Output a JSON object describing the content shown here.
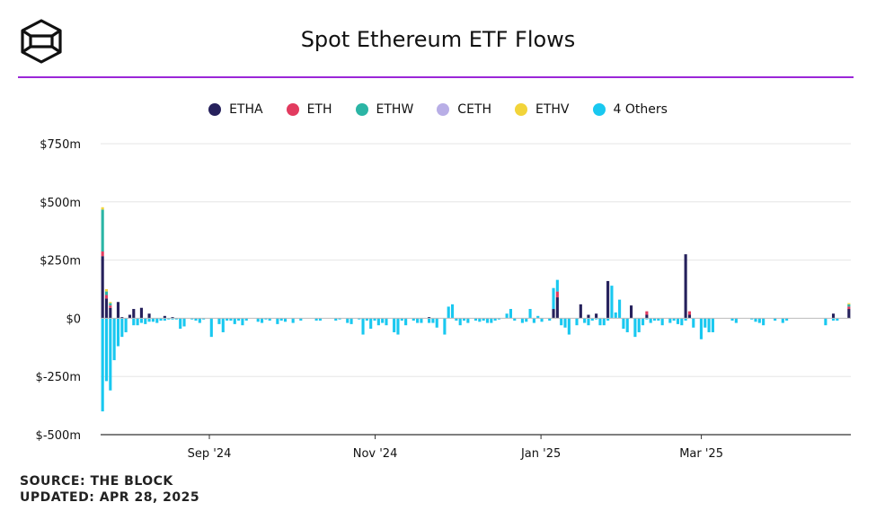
{
  "title": "Spot Ethereum ETF Flows",
  "logo": "the-block-cube-logo",
  "footer": {
    "source": "SOURCE: THE BLOCK",
    "updated": "UPDATED: APR 28, 2025"
  },
  "colors": {
    "accent_rule": "#9b27d8",
    "grid": "#e6e6e6",
    "axis": "#333333"
  },
  "chart_data": {
    "type": "bar",
    "stacked": true,
    "title": "Spot Ethereum ETF Flows",
    "xlabel": "",
    "ylabel": "",
    "ylim": [
      -500,
      750
    ],
    "y_ticks": [
      -500,
      -250,
      0,
      250,
      500,
      750
    ],
    "y_tick_labels": [
      "$-500m",
      "$-250m",
      "$0",
      "$250m",
      "$500m",
      "$750m"
    ],
    "x_range": [
      "2024-07-23",
      "2025-04-25"
    ],
    "x_ticks": [
      {
        "date": "2024-09-01",
        "label": "Sep '24"
      },
      {
        "date": "2024-11-01",
        "label": "Nov '24"
      },
      {
        "date": "2025-01-01",
        "label": "Jan '25"
      },
      {
        "date": "2025-03-01",
        "label": "Mar '25"
      }
    ],
    "grid": true,
    "legend_position": "top-center",
    "units": "USD millions",
    "series": [
      {
        "name": "ETHA",
        "color": "#26215c",
        "values": [
          267,
          85,
          45,
          0,
          70,
          5,
          0,
          15,
          40,
          0,
          45,
          0,
          20,
          0,
          0,
          0,
          10,
          0,
          5,
          0,
          0,
          0,
          0,
          0,
          0,
          0,
          0,
          0,
          0,
          0,
          0,
          0,
          0,
          0,
          0,
          0,
          0,
          0,
          0,
          0,
          0,
          0,
          0,
          0,
          0,
          0,
          0,
          0,
          0,
          0,
          0,
          0,
          0,
          0,
          0,
          0,
          0,
          0,
          0,
          0,
          0,
          0,
          0,
          0,
          0,
          0,
          0,
          0,
          0,
          0,
          0,
          0,
          0,
          0,
          0,
          0,
          0,
          0,
          0,
          0,
          0,
          0,
          0,
          0,
          5,
          0,
          0,
          0,
          0,
          0,
          0,
          0,
          0,
          0,
          0,
          0,
          0,
          0,
          0,
          0,
          0,
          0,
          0,
          0,
          0,
          0,
          0,
          0,
          0,
          0,
          0,
          0,
          0,
          0,
          0,
          0,
          40,
          90,
          0,
          0,
          0,
          0,
          0,
          60,
          0,
          15,
          0,
          20,
          0,
          0,
          160,
          0,
          0,
          0,
          0,
          0,
          55,
          0,
          0,
          0,
          15,
          0,
          0,
          0,
          0,
          0,
          0,
          0,
          0,
          0,
          275,
          15,
          0,
          0,
          0,
          0,
          0,
          0,
          0,
          0,
          0,
          0,
          0,
          0,
          0,
          0,
          0,
          0,
          0,
          0,
          0,
          0,
          0,
          0,
          0,
          0,
          0,
          0,
          0,
          0,
          0,
          0,
          0,
          0,
          0,
          0,
          0,
          0,
          20,
          0,
          0,
          0,
          40
        ]
      },
      {
        "name": "ETH",
        "color": "#e23b5f",
        "values": [
          20,
          15,
          10,
          0,
          0,
          0,
          0,
          0,
          0,
          0,
          0,
          0,
          0,
          0,
          0,
          0,
          0,
          0,
          0,
          0,
          0,
          0,
          0,
          0,
          0,
          0,
          0,
          0,
          0,
          0,
          0,
          0,
          0,
          0,
          0,
          0,
          0,
          0,
          0,
          0,
          0,
          0,
          0,
          0,
          0,
          0,
          0,
          0,
          0,
          0,
          0,
          0,
          0,
          0,
          0,
          0,
          0,
          0,
          0,
          0,
          0,
          0,
          0,
          0,
          0,
          0,
          0,
          0,
          0,
          0,
          0,
          0,
          0,
          0,
          0,
          0,
          0,
          0,
          0,
          0,
          0,
          0,
          0,
          0,
          0,
          0,
          0,
          0,
          0,
          0,
          0,
          0,
          0,
          0,
          0,
          0,
          0,
          0,
          0,
          0,
          0,
          0,
          0,
          0,
          0,
          0,
          0,
          0,
          0,
          0,
          0,
          0,
          0,
          0,
          0,
          0,
          0,
          25,
          0,
          0,
          0,
          0,
          0,
          0,
          0,
          0,
          0,
          0,
          0,
          0,
          0,
          0,
          0,
          0,
          0,
          0,
          0,
          0,
          0,
          0,
          15,
          0,
          0,
          0,
          0,
          0,
          0,
          0,
          0,
          0,
          0,
          15,
          0,
          0,
          0,
          0,
          0,
          0,
          0,
          0,
          0,
          0,
          0,
          0,
          0,
          0,
          0,
          0,
          0,
          0,
          0,
          0,
          0,
          0,
          0,
          0,
          0,
          0,
          0,
          0,
          0,
          0,
          0,
          0,
          0,
          0,
          0,
          0,
          0,
          0,
          0,
          0,
          10
        ]
      },
      {
        "name": "ETHW",
        "color": "#2bb5a5",
        "values": [
          180,
          15,
          10,
          0,
          0,
          0,
          0,
          0,
          0,
          0,
          0,
          0,
          0,
          0,
          0,
          0,
          0,
          0,
          0,
          0,
          0,
          0,
          0,
          0,
          0,
          0,
          0,
          0,
          0,
          0,
          0,
          0,
          0,
          0,
          0,
          0,
          0,
          0,
          0,
          0,
          0,
          0,
          0,
          0,
          0,
          0,
          0,
          0,
          0,
          0,
          0,
          0,
          0,
          0,
          0,
          0,
          0,
          0,
          0,
          0,
          0,
          0,
          0,
          0,
          0,
          0,
          0,
          0,
          0,
          0,
          0,
          0,
          0,
          0,
          0,
          0,
          0,
          0,
          0,
          0,
          0,
          0,
          0,
          0,
          0,
          0,
          0,
          0,
          0,
          0,
          0,
          0,
          0,
          0,
          0,
          0,
          0,
          0,
          0,
          0,
          0,
          0,
          0,
          0,
          0,
          0,
          0,
          0,
          0,
          0,
          0,
          0,
          0,
          0,
          0,
          0,
          0,
          0,
          0,
          0,
          0,
          0,
          0,
          0,
          0,
          0,
          0,
          0,
          0,
          0,
          0,
          0,
          0,
          0,
          0,
          0,
          0,
          0,
          0,
          0,
          0,
          0,
          0,
          0,
          0,
          0,
          0,
          0,
          0,
          0,
          0,
          0,
          0,
          0,
          0,
          0,
          0,
          0,
          0,
          0,
          0,
          0,
          0,
          0,
          0,
          0,
          0,
          0,
          0,
          0,
          0,
          0,
          0,
          0,
          0,
          0,
          0,
          0,
          0,
          0,
          0,
          0,
          0,
          0,
          0,
          0,
          0,
          0,
          0,
          0,
          0,
          0,
          10
        ]
      },
      {
        "name": "CETH",
        "color": "#b8aee6",
        "values": [
          0,
          0,
          0,
          0,
          0,
          0,
          0,
          0,
          0,
          0,
          0,
          0,
          0,
          0,
          0,
          0,
          0,
          0,
          0,
          0,
          0,
          0,
          0,
          0,
          0,
          0,
          0,
          0,
          0,
          0,
          0,
          0,
          0,
          0,
          0,
          0,
          0,
          0,
          0,
          0,
          0,
          0,
          0,
          0,
          0,
          0,
          0,
          0,
          0,
          0,
          0,
          0,
          0,
          0,
          0,
          0,
          0,
          0,
          0,
          0,
          0,
          0,
          0,
          0,
          0,
          0,
          0,
          0,
          0,
          0,
          0,
          0,
          0,
          0,
          0,
          0,
          0,
          0,
          0,
          0,
          0,
          0,
          0,
          0,
          0,
          0,
          0,
          0,
          0,
          0,
          0,
          0,
          0,
          0,
          0,
          0,
          0,
          0,
          0,
          0,
          0,
          0,
          0,
          0,
          0,
          0,
          0,
          0,
          0,
          0,
          0,
          0,
          0,
          0,
          0,
          0,
          0,
          0,
          0,
          0,
          0,
          0,
          0,
          0,
          0,
          0,
          0,
          0,
          0,
          0,
          0,
          0,
          0,
          0,
          0,
          0,
          0,
          0,
          0,
          0,
          0,
          0,
          0,
          0,
          0,
          0,
          0,
          0,
          0,
          0,
          0,
          0,
          0,
          0,
          0,
          0,
          0,
          0,
          0,
          0,
          0,
          0,
          0,
          0,
          0,
          0,
          0,
          0,
          0,
          0,
          0,
          0,
          0,
          0,
          0,
          0,
          0,
          0,
          0,
          0,
          0,
          0,
          0,
          0,
          0,
          0,
          0,
          0,
          0,
          0,
          0,
          0,
          0
        ]
      },
      {
        "name": "ETHV",
        "color": "#f2d43a",
        "values": [
          10,
          10,
          5,
          0,
          0,
          0,
          0,
          0,
          0,
          0,
          0,
          0,
          0,
          0,
          0,
          0,
          0,
          0,
          0,
          0,
          0,
          0,
          0,
          0,
          0,
          0,
          0,
          0,
          0,
          0,
          0,
          0,
          0,
          0,
          0,
          0,
          0,
          0,
          0,
          0,
          0,
          0,
          0,
          0,
          0,
          0,
          0,
          0,
          0,
          0,
          0,
          0,
          0,
          0,
          0,
          0,
          0,
          0,
          0,
          0,
          0,
          0,
          0,
          0,
          0,
          0,
          0,
          0,
          0,
          0,
          0,
          0,
          0,
          0,
          0,
          0,
          0,
          0,
          0,
          0,
          0,
          0,
          0,
          0,
          0,
          0,
          0,
          0,
          0,
          0,
          0,
          0,
          0,
          0,
          0,
          0,
          0,
          0,
          0,
          0,
          0,
          0,
          0,
          0,
          0,
          0,
          0,
          0,
          0,
          0,
          0,
          0,
          0,
          0,
          0,
          0,
          0,
          0,
          0,
          0,
          0,
          0,
          0,
          0,
          0,
          0,
          0,
          0,
          0,
          0,
          0,
          0,
          0,
          0,
          0,
          0,
          0,
          0,
          0,
          0,
          0,
          0,
          0,
          0,
          0,
          0,
          0,
          0,
          0,
          0,
          0,
          0,
          0,
          0,
          0,
          0,
          0,
          0,
          0,
          0,
          0,
          0,
          0,
          0,
          0,
          0,
          0,
          0,
          0,
          0,
          0,
          0,
          0,
          0,
          0,
          0,
          0,
          0,
          0,
          0,
          0,
          0,
          0,
          0,
          0,
          0,
          0,
          0,
          0,
          0,
          0,
          0,
          5
        ]
      },
      {
        "name": "4 Others",
        "color": "#19c8f0",
        "values": [
          -400,
          -270,
          -310,
          -180,
          -120,
          -80,
          -60,
          0,
          -30,
          -30,
          -20,
          -25,
          -15,
          -15,
          -20,
          -10,
          -10,
          -5,
          -5,
          -5,
          -45,
          -35,
          0,
          -5,
          -10,
          -20,
          -5,
          0,
          -80,
          0,
          -25,
          -60,
          -10,
          -10,
          -25,
          -10,
          -30,
          -10,
          0,
          0,
          -15,
          -20,
          -5,
          -10,
          0,
          -25,
          -10,
          -15,
          0,
          -20,
          0,
          -10,
          0,
          0,
          0,
          -10,
          -10,
          0,
          0,
          0,
          -10,
          -5,
          0,
          -20,
          -25,
          0,
          -5,
          -70,
          -10,
          -45,
          -10,
          -30,
          -20,
          -30,
          0,
          -60,
          -70,
          -10,
          -30,
          0,
          -10,
          -20,
          -20,
          0,
          -20,
          -20,
          -40,
          0,
          -70,
          50,
          60,
          -10,
          -30,
          -10,
          -20,
          0,
          -10,
          -15,
          -10,
          -20,
          -20,
          -10,
          -5,
          0,
          20,
          40,
          -10,
          0,
          -20,
          -15,
          40,
          -20,
          10,
          -15,
          0,
          -10,
          90,
          50,
          -30,
          -40,
          -70,
          0,
          -30,
          0,
          -20,
          -30,
          -10,
          -5,
          -30,
          -30,
          -10,
          140,
          25,
          80,
          -45,
          -60,
          0,
          -80,
          -60,
          -30,
          -5,
          -20,
          -10,
          -10,
          -30,
          0,
          -20,
          -10,
          -25,
          -30,
          -10,
          0,
          -40,
          0,
          -90,
          -40,
          -60,
          -60,
          0,
          0,
          0,
          0,
          -10,
          -20,
          0,
          0,
          0,
          -5,
          -15,
          -20,
          -30,
          0,
          0,
          -10,
          0,
          -20,
          -10,
          0,
          0,
          0,
          0,
          0,
          0,
          0,
          0,
          0,
          -30,
          0,
          -10,
          -10,
          0
        ]
      }
    ]
  }
}
